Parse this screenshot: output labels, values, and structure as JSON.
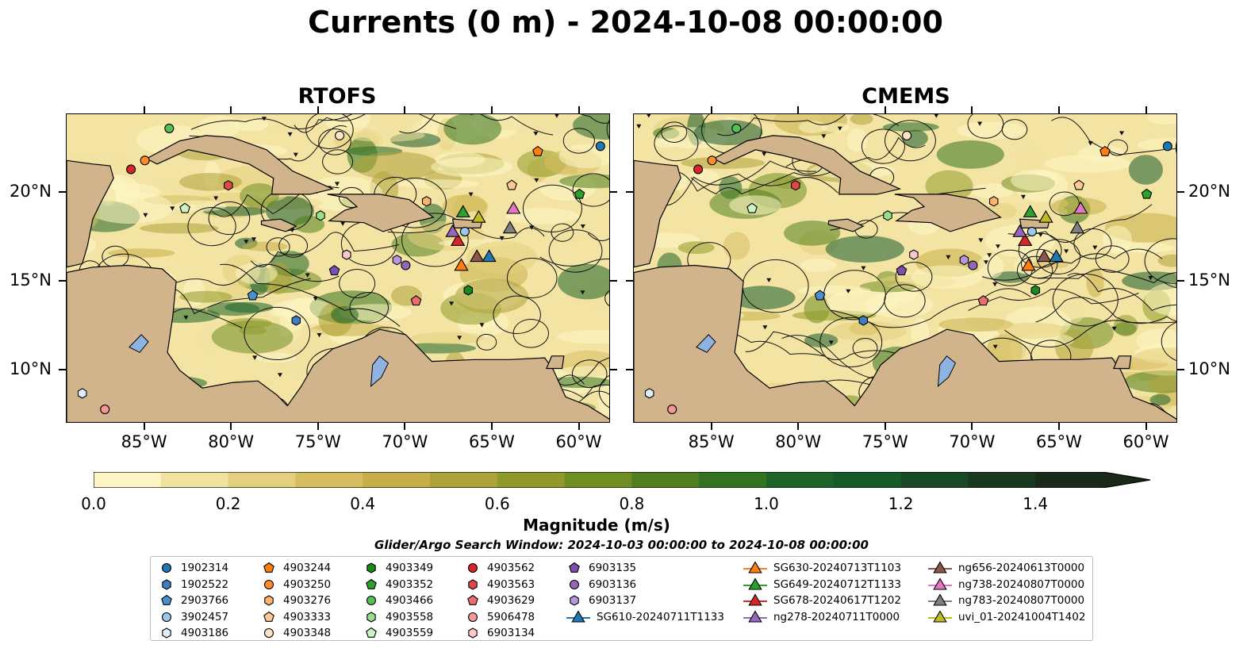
{
  "title": "Currents (0 m) - 2024-10-08 00:00:00",
  "panels": [
    {
      "title": "RTOFS"
    },
    {
      "title": "CMEMS"
    }
  ],
  "axes": {
    "lon_ticks": [
      "85°W",
      "80°W",
      "75°W",
      "70°W",
      "65°W",
      "60°W"
    ],
    "lat_ticks": [
      "20°N",
      "15°N",
      "10°N"
    ],
    "lon_values": [
      -85,
      -80,
      -75,
      -70,
      -65,
      -60
    ],
    "lat_values": [
      20,
      15,
      10
    ],
    "lon_range": [
      -89.5,
      -58.2
    ],
    "lat_range": [
      7.0,
      24.4
    ]
  },
  "colorbar": {
    "label": "Magnitude (m/s)",
    "ticks": [
      "0.0",
      "0.2",
      "0.4",
      "0.6",
      "0.8",
      "1.0",
      "1.2",
      "1.4"
    ],
    "tick_values": [
      0.0,
      0.2,
      0.4,
      0.6,
      0.8,
      1.0,
      1.2,
      1.4
    ],
    "range": [
      0.0,
      1.5
    ],
    "extend": "max",
    "colors": [
      "#fdf6c3",
      "#f0e2a0",
      "#e3cf7e",
      "#d6be60",
      "#c6ae48",
      "#aea23a",
      "#8f9a2a",
      "#6f8e22",
      "#4f7f1e",
      "#33721e",
      "#1e6428",
      "#165a2a",
      "#174a24",
      "#18391e",
      "#1a2a18"
    ]
  },
  "search_window": "Glider/Argo Search Window: 2024-10-03 00:00:00 to 2024-10-08 00:00:00",
  "legend_columns": [
    [
      {
        "label": "1902314",
        "marker": "circle",
        "color": "#1f77b4"
      },
      {
        "label": "1902522",
        "marker": "hexagon",
        "color": "#3f7fbf"
      },
      {
        "label": "2903766",
        "marker": "pentagon",
        "color": "#4a8fd0"
      },
      {
        "label": "3902457",
        "marker": "circle",
        "color": "#9cc8ee"
      },
      {
        "label": "4903186",
        "marker": "hexagon",
        "color": "#deeefb"
      }
    ],
    [
      {
        "label": "4903244",
        "marker": "pentagon",
        "color": "#ff7f0e"
      },
      {
        "label": "4903250",
        "marker": "circle",
        "color": "#ff8c2a"
      },
      {
        "label": "4903276",
        "marker": "hexagon",
        "color": "#ffb36b"
      },
      {
        "label": "4903333",
        "marker": "pentagon",
        "color": "#ffc995"
      },
      {
        "label": "4903348",
        "marker": "circle",
        "color": "#ffe3c6"
      }
    ],
    [
      {
        "label": "4903349",
        "marker": "hexagon",
        "color": "#1a8a1a"
      },
      {
        "label": "4903352",
        "marker": "pentagon",
        "color": "#2ca02c"
      },
      {
        "label": "4903466",
        "marker": "circle",
        "color": "#55c055"
      },
      {
        "label": "4903558",
        "marker": "hexagon",
        "color": "#98df8a"
      },
      {
        "label": "4903559",
        "marker": "pentagon",
        "color": "#cdf5c4"
      }
    ],
    [
      {
        "label": "4903562",
        "marker": "circle",
        "color": "#d62728"
      },
      {
        "label": "4903563",
        "marker": "hexagon",
        "color": "#e04848"
      },
      {
        "label": "4903629",
        "marker": "pentagon",
        "color": "#ec6d6d"
      },
      {
        "label": "5906478",
        "marker": "circle",
        "color": "#f39898"
      },
      {
        "label": "6903134",
        "marker": "hexagon",
        "color": "#fbc9c9"
      }
    ],
    [
      {
        "label": "6903135",
        "marker": "pentagon",
        "color": "#7b4fb0"
      },
      {
        "label": "6903136",
        "marker": "circle",
        "color": "#9467bd"
      },
      {
        "label": "6903137",
        "marker": "hexagon",
        "color": "#b699dc"
      },
      {
        "label": "SG610-20240711T1133",
        "marker": "triangle",
        "color": "#1f77b4"
      }
    ],
    [
      {
        "label": "SG630-20240713T1103",
        "marker": "triangle",
        "color": "#ff7f0e"
      },
      {
        "label": "SG649-20240712T1133",
        "marker": "triangle",
        "color": "#2ca02c"
      },
      {
        "label": "SG678-20240617T1202",
        "marker": "triangle",
        "color": "#d62728"
      },
      {
        "label": "ng278-20240711T0000",
        "marker": "triangle",
        "color": "#9467bd"
      }
    ],
    [
      {
        "label": "ng656-20240613T0000",
        "marker": "triangle",
        "color": "#8c564b"
      },
      {
        "label": "ng738-20240807T0000",
        "marker": "triangle",
        "color": "#e377c2"
      },
      {
        "label": "ng783-20240807T0000",
        "marker": "triangle",
        "color": "#7f7f7f"
      },
      {
        "label": "uvi_01-20241004T1402",
        "marker": "triangle",
        "color": "#bcbd22"
      }
    ]
  ],
  "observations": [
    {
      "label": "1902314",
      "lon": -58.8,
      "lat": 22.6
    },
    {
      "label": "1902522",
      "lon": -76.3,
      "lat": 12.8
    },
    {
      "label": "2903766",
      "lon": -78.8,
      "lat": 14.2
    },
    {
      "label": "3902457",
      "lon": -66.6,
      "lat": 17.8
    },
    {
      "label": "4903186",
      "lon": -88.6,
      "lat": 8.7
    },
    {
      "label": "4903244",
      "lon": -62.4,
      "lat": 22.3
    },
    {
      "label": "4903250",
      "lon": -85.0,
      "lat": 21.8
    },
    {
      "label": "4903276",
      "lon": -68.8,
      "lat": 19.5
    },
    {
      "label": "4903333",
      "lon": -63.9,
      "lat": 20.4
    },
    {
      "label": "4903348",
      "lon": -73.8,
      "lat": 23.2
    },
    {
      "label": "4903349",
      "lon": -66.4,
      "lat": 14.5
    },
    {
      "label": "4903352",
      "lon": -60.0,
      "lat": 19.9
    },
    {
      "label": "4903466",
      "lon": -83.6,
      "lat": 23.6
    },
    {
      "label": "4903558",
      "lon": -74.9,
      "lat": 18.7
    },
    {
      "label": "4903559",
      "lon": -82.7,
      "lat": 19.1
    },
    {
      "label": "4903562",
      "lon": -85.8,
      "lat": 21.3
    },
    {
      "label": "4903563",
      "lon": -80.2,
      "lat": 20.4
    },
    {
      "label": "4903629",
      "lon": -69.4,
      "lat": 13.9
    },
    {
      "label": "5906478",
      "lon": -87.3,
      "lat": 7.8
    },
    {
      "label": "6903134",
      "lon": -73.4,
      "lat": 16.5
    },
    {
      "label": "6903135",
      "lon": -74.1,
      "lat": 15.6
    },
    {
      "label": "6903136",
      "lon": -70.0,
      "lat": 15.9
    },
    {
      "label": "6903137",
      "lon": -70.5,
      "lat": 16.2
    }
  ],
  "gliders": [
    {
      "label": "SG610-20240711T1133",
      "lon": -65.2,
      "lat": 16.4
    },
    {
      "label": "SG630-20240713T1103",
      "lon": -66.8,
      "lat": 15.9
    },
    {
      "label": "SG649-20240712T1133",
      "lon": -66.7,
      "lat": 18.9
    },
    {
      "label": "SG678-20240617T1202",
      "lon": -67.0,
      "lat": 17.3
    },
    {
      "label": "ng278-20240711T0000",
      "lon": -67.3,
      "lat": 17.8
    },
    {
      "label": "ng656-20240613T0000",
      "lon": -65.9,
      "lat": 16.4
    },
    {
      "label": "ng738-20240807T0000",
      "lon": -63.8,
      "lat": 19.1
    },
    {
      "label": "ng783-20240807T0000",
      "lon": -64.0,
      "lat": 18.0
    },
    {
      "label": "uvi_01-20241004T1402",
      "lon": -65.8,
      "lat": 18.6
    }
  ]
}
